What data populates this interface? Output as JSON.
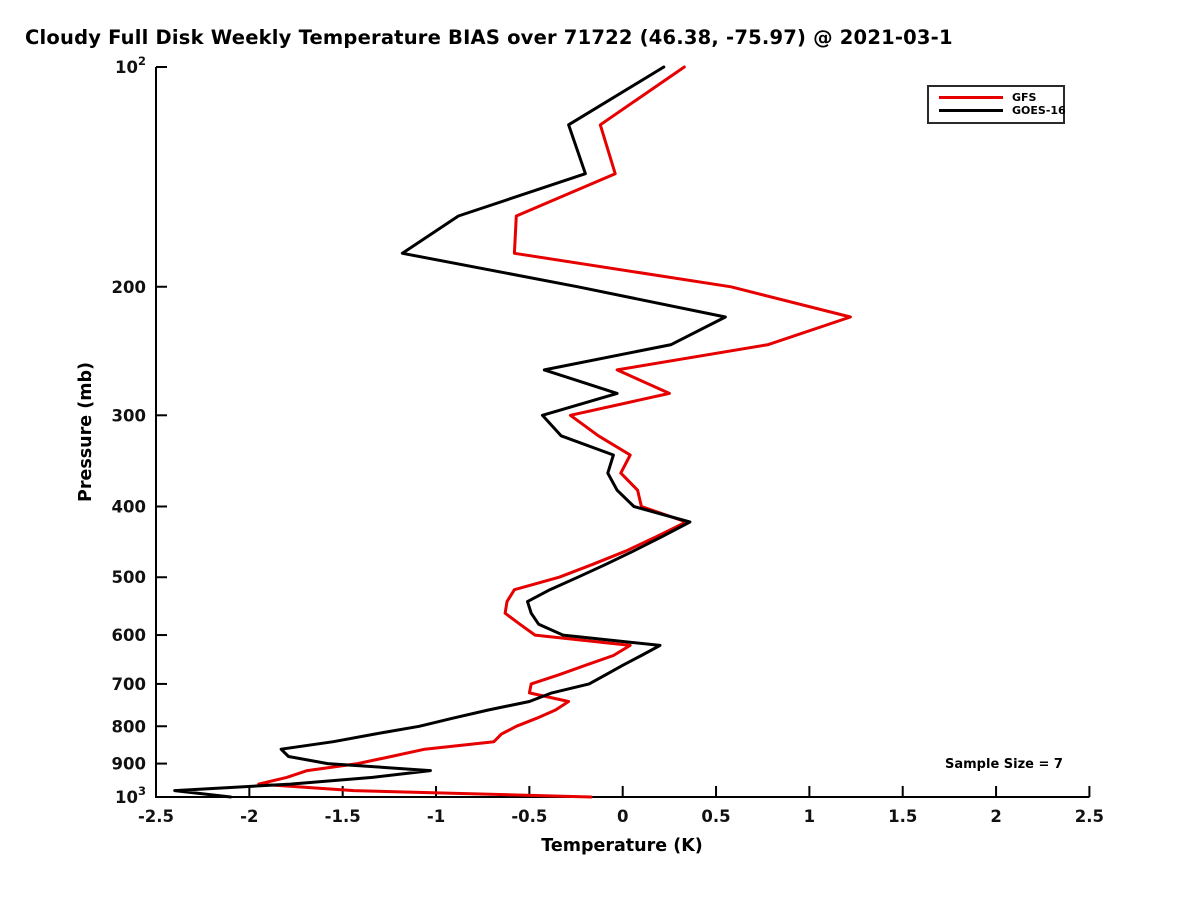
{
  "title": "Cloudy Full Disk Weekly Temperature BIAS over 71722 (46.38, -75.97) @ 2021-03-1",
  "annotation": "Sample Size = 7",
  "legend": {
    "position": "upper-right",
    "items": [
      {
        "label": "GFS",
        "color": "#e60000"
      },
      {
        "label": "GOES-16",
        "color": "#000000"
      }
    ]
  },
  "colors": {
    "background": "#ffffff",
    "axis": "#000000",
    "tick_label": "#111111",
    "legend_border": "#2a2a2a"
  },
  "chart_data": {
    "type": "line",
    "title": "Cloudy Full Disk Weekly Temperature BIAS over 71722 (46.38, -75.97) @ 2021-03-1",
    "xlabel": "Temperature (K)",
    "ylabel": "Pressure (mb)",
    "xlim": [
      -2.5,
      2.5
    ],
    "x_ticks": [
      -2.5,
      -2,
      -1.5,
      -1,
      -0.5,
      0,
      0.5,
      1,
      1.5,
      2,
      2.5
    ],
    "x_tick_labels": [
      "-2.5",
      "-2",
      "-1.5",
      "-1",
      "-0.5",
      "0",
      "0.5",
      "1",
      "1.5",
      "2",
      "2.5"
    ],
    "y_scale": "log",
    "ylim": [
      100,
      1000
    ],
    "y_ticks": [
      100,
      200,
      300,
      400,
      500,
      600,
      700,
      800,
      900,
      1000
    ],
    "y_tick_labels": [
      "10^2",
      "200",
      "300",
      "400",
      "500",
      "600",
      "700",
      "800",
      "900",
      "10^3"
    ],
    "grid": false,
    "legend_position": "upper right",
    "pressure_levels": [
      100,
      120,
      140,
      160,
      180,
      200,
      220,
      240,
      260,
      280,
      300,
      320,
      340,
      360,
      380,
      400,
      420,
      440,
      460,
      480,
      500,
      520,
      540,
      560,
      580,
      600,
      620,
      640,
      660,
      680,
      700,
      720,
      740,
      760,
      780,
      800,
      820,
      840,
      860,
      880,
      900,
      920,
      940,
      960,
      980,
      1000
    ],
    "series": [
      {
        "name": "GFS",
        "color": "#e60000",
        "values": [
          0.33,
          -0.12,
          -0.04,
          -0.57,
          -0.58,
          0.58,
          1.22,
          0.78,
          -0.03,
          0.25,
          -0.28,
          -0.13,
          0.04,
          -0.01,
          0.08,
          0.1,
          0.34,
          0.18,
          0.02,
          -0.16,
          -0.34,
          -0.58,
          -0.62,
          -0.63,
          -0.55,
          -0.47,
          0.04,
          -0.05,
          -0.2,
          -0.34,
          -0.49,
          -0.5,
          -0.29,
          -0.36,
          -0.46,
          -0.57,
          -0.65,
          -0.69,
          -1.06,
          -1.24,
          -1.42,
          -1.69,
          -1.8,
          -1.95,
          -1.44,
          -0.17
        ]
      },
      {
        "name": "GOES-16",
        "color": "#000000",
        "values": [
          0.22,
          -0.29,
          -0.2,
          -0.88,
          -1.18,
          -0.24,
          0.55,
          0.26,
          -0.42,
          -0.03,
          -0.43,
          -0.33,
          -0.05,
          -0.08,
          -0.03,
          0.06,
          0.36,
          0.21,
          0.06,
          -0.09,
          -0.24,
          -0.39,
          -0.51,
          -0.49,
          -0.45,
          -0.32,
          0.2,
          0.1,
          0.0,
          -0.09,
          -0.18,
          -0.38,
          -0.5,
          -0.72,
          -0.91,
          -1.09,
          -1.33,
          -1.55,
          -1.83,
          -1.79,
          -1.58,
          -1.03,
          -1.34,
          -1.78,
          -2.4,
          -2.1
        ]
      }
    ],
    "annotation": "Sample Size = 7"
  }
}
